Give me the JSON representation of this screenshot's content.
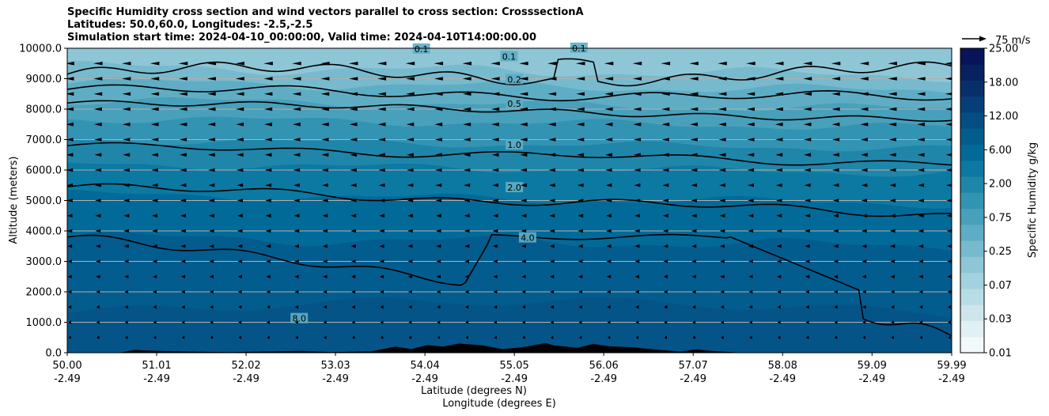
{
  "title": {
    "line1": "Specific Humidity cross section and wind vectors parallel to cross section: CrosssectionA",
    "line2": "Latitudes: 50.0,60.0, Longitudes: -2.5,-2.5",
    "line3": "Simulation start time: 2024-04-10_00:00:00, Valid time: 2024-04-10T14:00:00.00"
  },
  "chart_data": {
    "type": "contour_cross_section",
    "ylabel": "Altitude (meters)",
    "xlabel_line1": "Latitude (degrees N)",
    "xlabel_line2": "Longitude (degrees E)",
    "ylim": [
      0,
      10000
    ],
    "y_ticks": [
      "0.0",
      "1000.0",
      "2000.0",
      "3000.0",
      "4000.0",
      "5000.0",
      "6000.0",
      "7000.0",
      "8000.0",
      "9000.0",
      "10000.0"
    ],
    "y_tick_values": [
      0,
      1000,
      2000,
      3000,
      4000,
      5000,
      6000,
      7000,
      8000,
      9000,
      10000
    ],
    "x_ticks": [
      {
        "lat": "50.00",
        "lon": "-2.49"
      },
      {
        "lat": "51.01",
        "lon": "-2.49"
      },
      {
        "lat": "52.02",
        "lon": "-2.49"
      },
      {
        "lat": "53.03",
        "lon": "-2.49"
      },
      {
        "lat": "54.04",
        "lon": "-2.49"
      },
      {
        "lat": "55.05",
        "lon": "-2.49"
      },
      {
        "lat": "56.06",
        "lon": "-2.49"
      },
      {
        "lat": "57.07",
        "lon": "-2.49"
      },
      {
        "lat": "58.08",
        "lon": "-2.49"
      },
      {
        "lat": "59.09",
        "lon": "-2.49"
      },
      {
        "lat": "59.99",
        "lon": "-2.49"
      }
    ],
    "x_range": [
      50.0,
      59.99
    ],
    "grid": "horizontal",
    "colorbar": {
      "label": "Specific Humidity g/kg",
      "tick_labels": [
        "0.01",
        "0.03",
        "0.07",
        "0.25",
        "0.75",
        "2.00",
        "6.00",
        "12.00",
        "18.00",
        "25.00"
      ],
      "levels": [
        0.01,
        0.02,
        0.03,
        0.05,
        0.07,
        0.1,
        0.25,
        0.5,
        0.75,
        1.0,
        2.0,
        4.0,
        6.0,
        8.0,
        12.0,
        15.0,
        18.0,
        22.0,
        25.0
      ],
      "colors": [
        "#f2f9fa",
        "#e0f0f3",
        "#cde6ec",
        "#b8dde6",
        "#a3d2de",
        "#8ec6d6",
        "#77bacd",
        "#5fadc4",
        "#48a0bb",
        "#3393b3",
        "#1f86aa",
        "#0c79a2",
        "#026a98",
        "#035c8e",
        "#054e84",
        "#063f78",
        "#07306b",
        "#08215f",
        "#081459"
      ]
    },
    "contour_labels": [
      {
        "text": "0.1",
        "lat": 54.0,
        "alt": 9950
      },
      {
        "text": "0.1",
        "lat": 54.99,
        "alt": 9700
      },
      {
        "text": "0.1",
        "lat": 55.78,
        "alt": 9980
      },
      {
        "text": "0.2",
        "lat": 55.05,
        "alt": 8950
      },
      {
        "text": "0.5",
        "lat": 55.05,
        "alt": 8150
      },
      {
        "text": "1.0",
        "lat": 55.05,
        "alt": 6800
      },
      {
        "text": "2.0",
        "lat": 55.05,
        "alt": 5400
      },
      {
        "text": "4.0",
        "lat": 55.2,
        "alt": 3750
      },
      {
        "text": "8.0",
        "lat": 52.62,
        "alt": 1100
      }
    ],
    "wind_reference": {
      "label": "75 m/s",
      "speed": 75
    },
    "wind_direction": "southward (arrows point toward lower latitude)"
  }
}
